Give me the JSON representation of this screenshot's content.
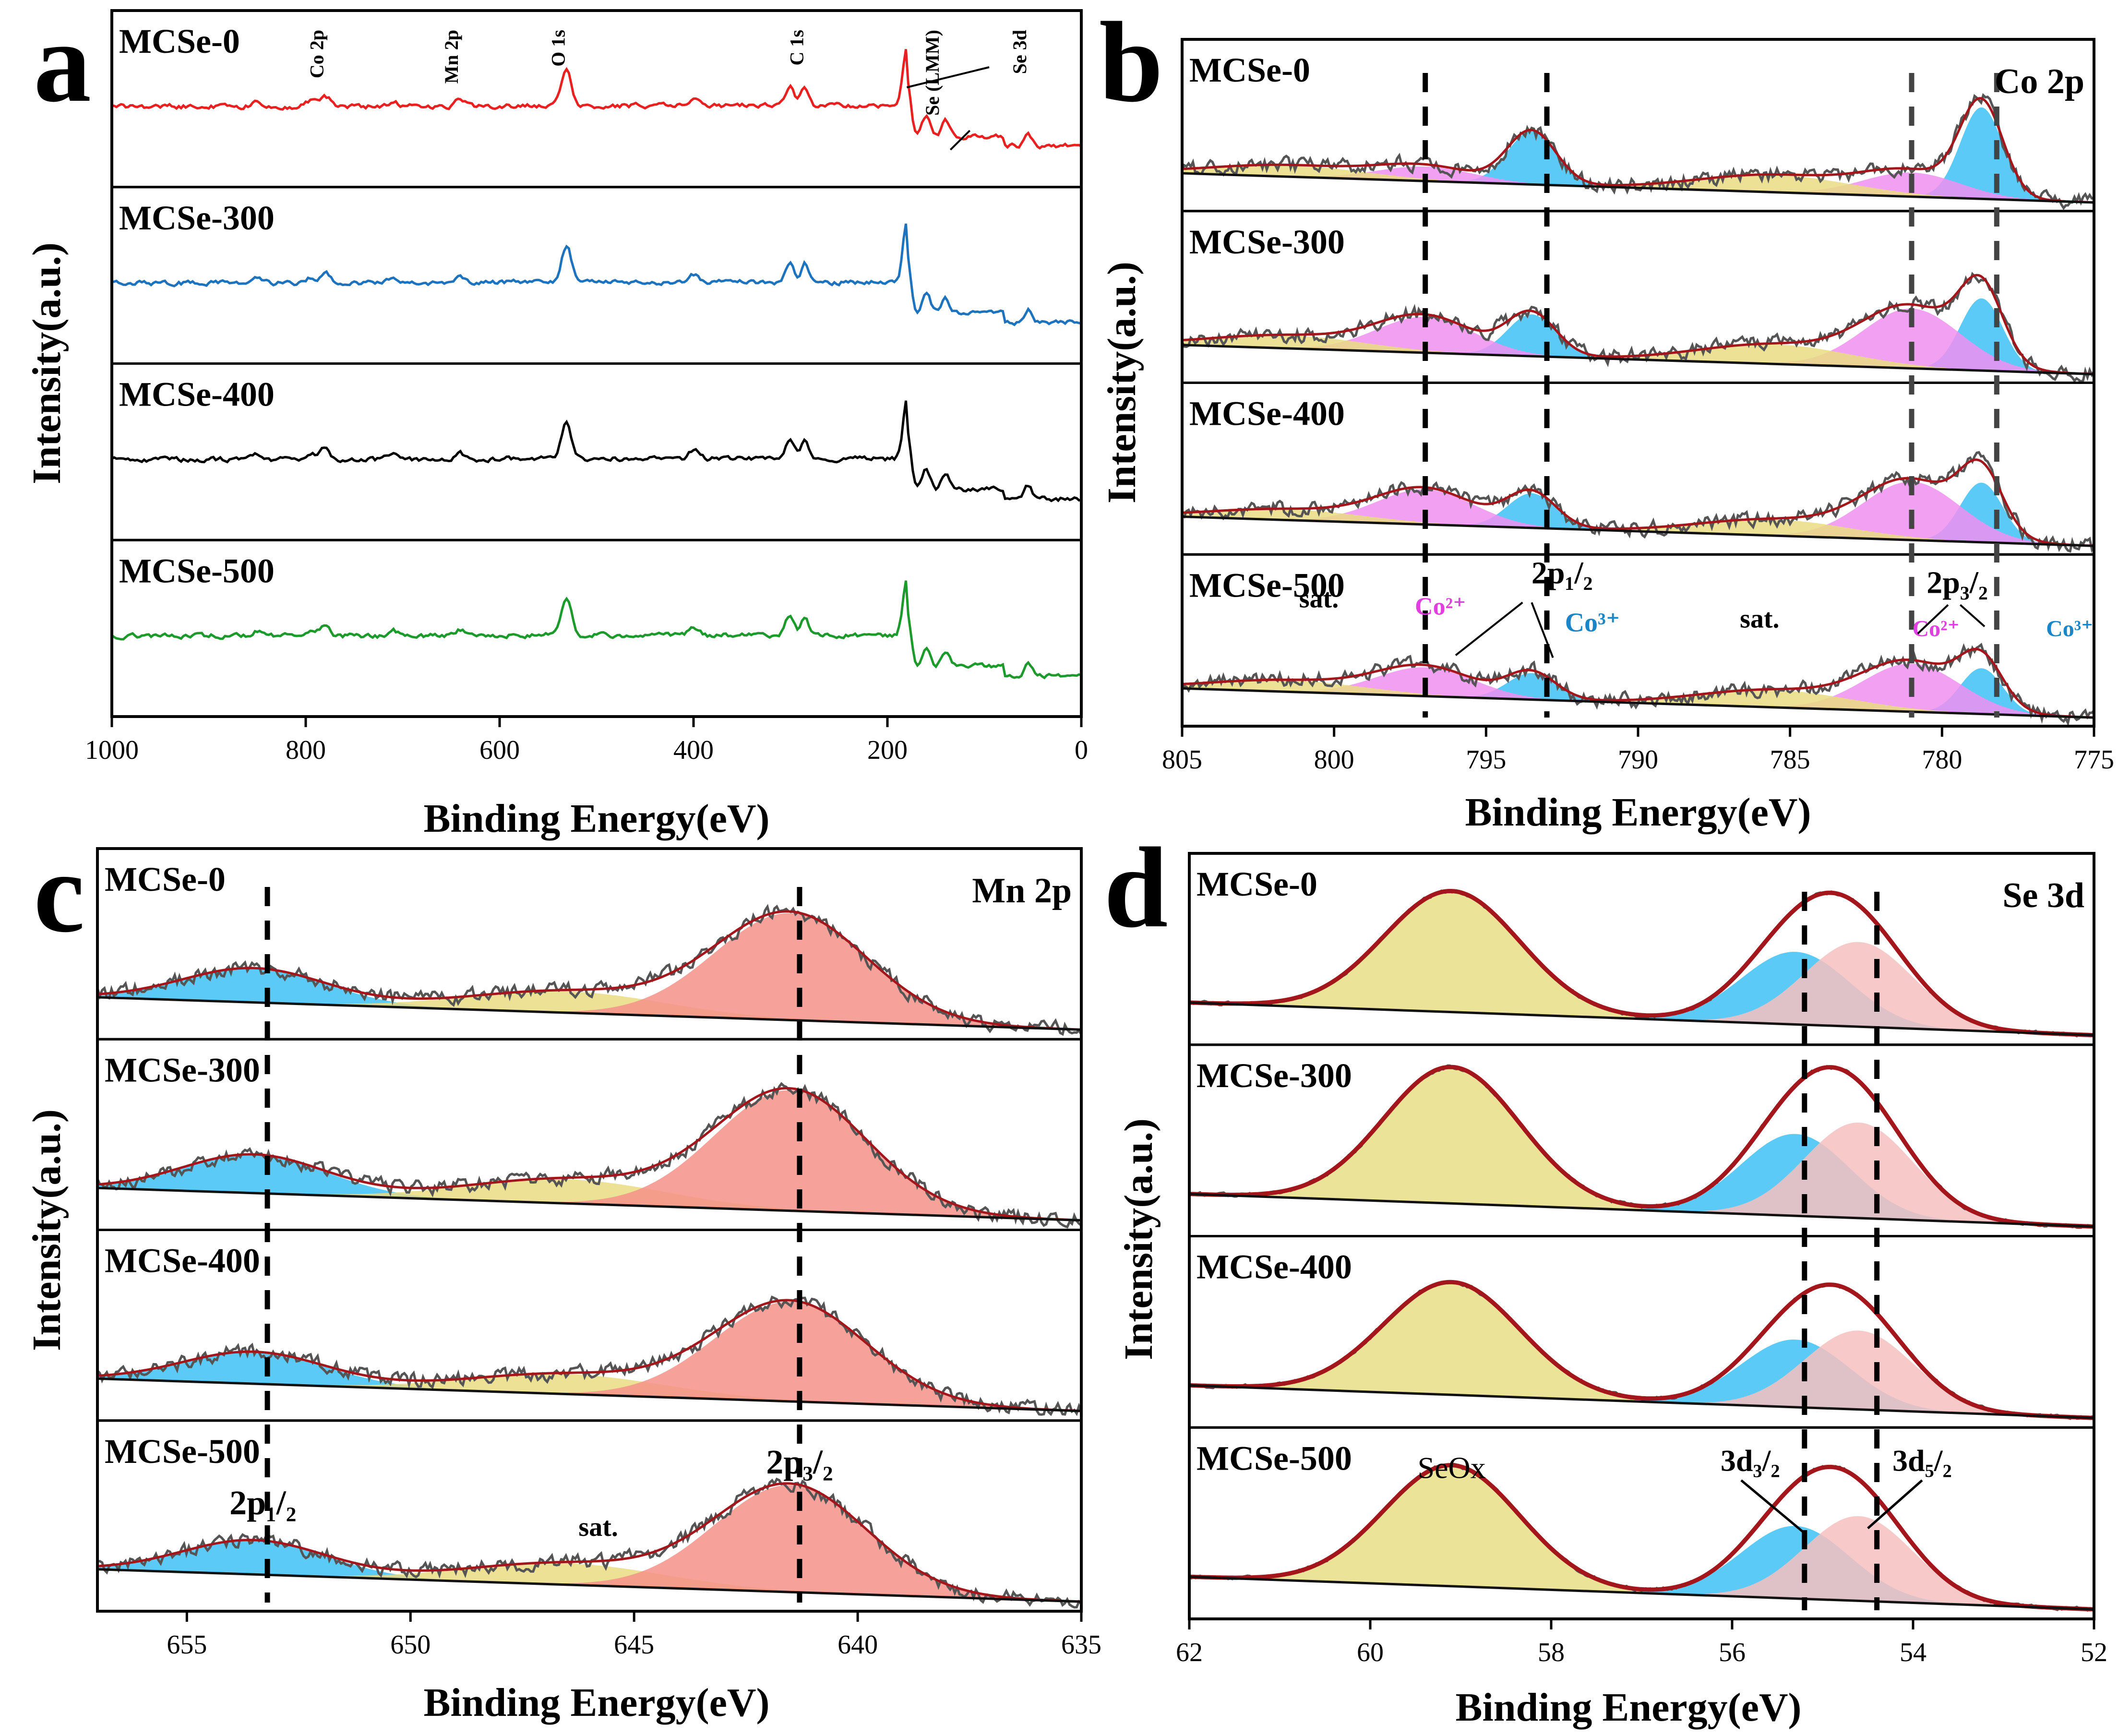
{
  "chart_data": [
    {
      "panel": "a",
      "type": "line",
      "title": "",
      "xlabel": "Binding Energy(eV)",
      "ylabel": "Intensity(a.u.)",
      "xlim": [
        1000,
        0
      ],
      "xticks": [
        "1000",
        "800",
        "600",
        "400",
        "200",
        "0"
      ],
      "samples": [
        "MCSe-0",
        "MCSe-300",
        "MCSe-400",
        "MCSe-500"
      ],
      "sample_colors": [
        "#e8201f",
        "#1e73be",
        "#000000",
        "#1c9a2b"
      ],
      "peak_labels": [
        {
          "text": "Co 2p",
          "x": 780
        },
        {
          "text": "Mn 2p",
          "x": 641
        },
        {
          "text": "O 1s",
          "x": 531
        },
        {
          "text": "C 1s",
          "x": 285
        },
        {
          "text": "Se (LMM)",
          "x": 145
        },
        {
          "text": "Se  3d",
          "x": 55
        }
      ],
      "peaks": [
        [
          780,
          10
        ],
        [
          795,
          5
        ],
        [
          641,
          6
        ],
        [
          531,
          35
        ],
        [
          285,
          18
        ],
        [
          300,
          20
        ],
        [
          180,
          55
        ],
        [
          160,
          20
        ],
        [
          140,
          15
        ],
        [
          55,
          12
        ],
        [
          400,
          8
        ],
        [
          850,
          4
        ],
        [
          710,
          5
        ]
      ]
    },
    {
      "panel": "b",
      "type": "line",
      "title": "Co 2p",
      "xlabel": "Binding Energy(eV)",
      "ylabel": "Intensity(a.u.)",
      "xlim": [
        805,
        775
      ],
      "xticks": [
        "805",
        "800",
        "795",
        "790",
        "785",
        "780",
        "775"
      ],
      "samples": [
        "MCSe-0",
        "MCSe-300",
        "MCSe-400",
        "MCSe-500"
      ],
      "dashed_lines": [
        797,
        793,
        781,
        778.2
      ],
      "annotations": [
        "sat.",
        "Co²⁺",
        "2p₁/₂",
        "Co³⁺",
        "sat.",
        "Co²⁺",
        "2p₃/₂",
        "Co³⁺"
      ],
      "components": {
        "Co3+": [
          [
            793.5,
            0.55,
            0.8
          ],
          [
            778.7,
            0.95,
            0.7
          ]
        ],
        "Co2+": [
          [
            797,
            0.15,
            1.6
          ],
          [
            781,
            0.25,
            1.6
          ]
        ],
        "sat": [
          [
            801.5,
            0.12,
            2.5
          ],
          [
            785.5,
            0.18,
            2.5
          ]
        ]
      }
    },
    {
      "panel": "c",
      "type": "line",
      "title": "Mn 2p",
      "xlabel": "Binding Energy(eV)",
      "ylabel": "Intensity(a.u.)",
      "xlim": [
        657,
        635
      ],
      "xticks": [
        "655",
        "650",
        "645",
        "640",
        "635"
      ],
      "samples": [
        "MCSe-0",
        "MCSe-300",
        "MCSe-400",
        "MCSe-500"
      ],
      "dashed_lines": [
        653.2,
        641.3
      ],
      "annotations": [
        "2p₁/₂",
        "sat.",
        "2p₃/₂"
      ],
      "components": {
        "2p1/2": [
          [
            653.5,
            0.32,
            1.6
          ]
        ],
        "sat": [
          [
            646.5,
            0.2,
            2.2
          ]
        ],
        "2p3/2": [
          [
            641.5,
            1.0,
            1.7
          ]
        ]
      }
    },
    {
      "panel": "d",
      "type": "line",
      "title": "Se 3d",
      "xlabel": "Binding  Energy(eV)",
      "ylabel": "Intensity(a.u.)",
      "xlim": [
        62,
        52
      ],
      "xticks": [
        "62",
        "60",
        "58",
        "56",
        "54",
        "52"
      ],
      "samples": [
        "MCSe-0",
        "MCSe-300",
        "MCSe-400",
        "MCSe-500"
      ],
      "dashed_lines": [
        55.2,
        54.4
      ],
      "annotations": [
        "SeOx",
        "3d₃/₂",
        "3d₅/₂"
      ],
      "components": {
        "SeOx": [
          [
            59.1,
            1.0,
            0.75
          ]
        ],
        "3d3/2": [
          [
            55.3,
            0.6,
            0.6
          ]
        ],
        "3d5/2": [
          [
            54.6,
            0.7,
            0.6
          ]
        ]
      }
    }
  ],
  "panel_letters": [
    "a",
    "b",
    "c",
    "d"
  ],
  "colors": {
    "fit_envelope": "#a3171c",
    "raw_data": "#555555",
    "background": "#111111",
    "co3": "#3ec1f5",
    "co2": "#f08ff0",
    "sat": "#e9dc82",
    "mn_2p12": "#3ec1f5",
    "mn_2p32": "#f59088",
    "se_ox": "#e8de86",
    "se_3d32": "#3ec1f5",
    "se_3d52": "#f7c0c0"
  }
}
